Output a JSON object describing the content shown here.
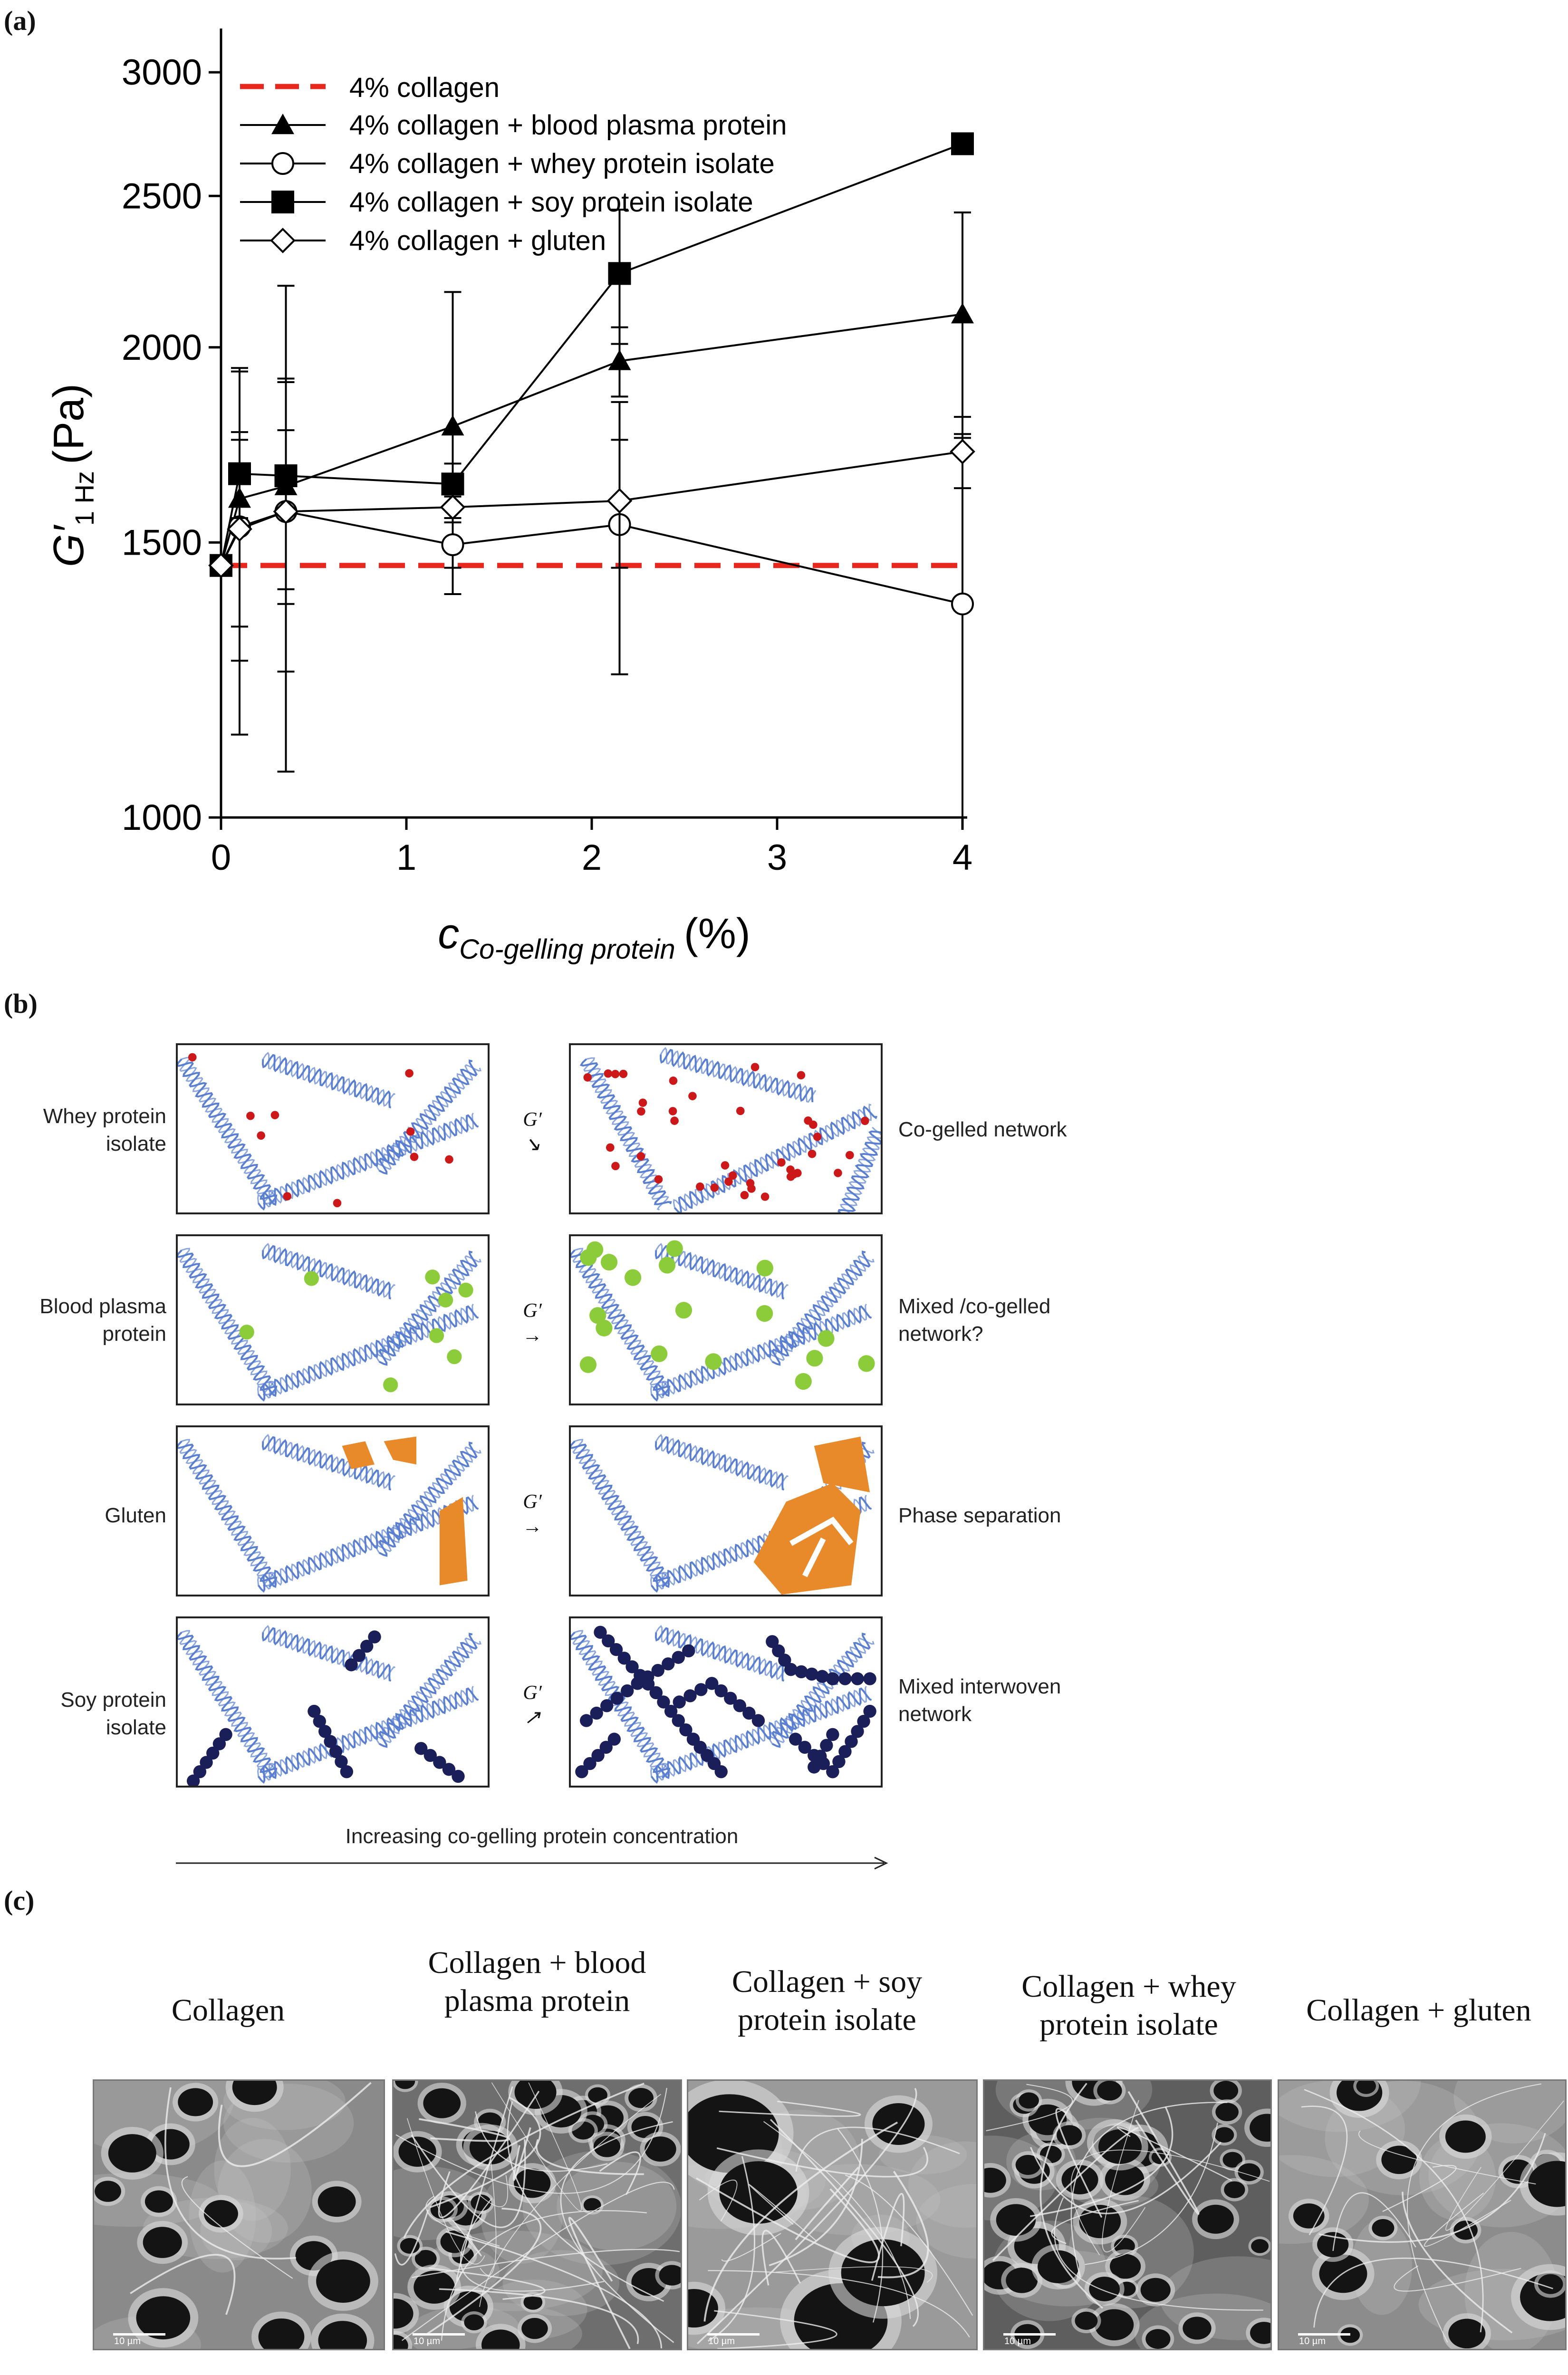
{
  "panels": {
    "a": "(a)",
    "b": "(b)",
    "c": "(c)"
  },
  "chart_data": {
    "type": "line",
    "ylabel": "G′",
    "ylabel_sub": "1 Hz",
    "ylabel_unit": "(Pa)",
    "xlabel": "c",
    "xlabel_sub": "Co-gelling protein",
    "xlabel_unit": "(%)",
    "yscale": "log",
    "ylim": [
      1000,
      3200
    ],
    "xlim": [
      -0.05,
      4.1
    ],
    "yticks": [
      1000,
      1500,
      2000,
      2500,
      3000
    ],
    "xticks": [
      0,
      1,
      2,
      3,
      4
    ],
    "reference": {
      "name": "4% collagen",
      "value": 1450,
      "color": "#e8281e"
    },
    "series": [
      {
        "name": "4% collagen + blood plasma protein",
        "marker": "triangle",
        "x": [
          0,
          0.1,
          0.35,
          1.25,
          2.15,
          4
        ],
        "y": [
          1450,
          1600,
          1630,
          1780,
          1960,
          2100
        ],
        "err": [
          0,
          340,
          560,
          390,
          100,
          340
        ]
      },
      {
        "name": "4% collagen + whey protein isolate",
        "marker": "circle",
        "x": [
          0,
          0.1,
          0.35,
          1.25,
          2.15,
          4
        ],
        "y": [
          1450,
          1535,
          1570,
          1495,
          1540,
          1370
        ],
        "err": [
          0,
          210,
          200,
          50,
          305,
          380
        ]
      },
      {
        "name": "4% collagen + soy protein isolate",
        "marker": "square",
        "x": [
          0,
          0.1,
          0.35,
          1.25,
          2.15,
          4
        ],
        "y": [
          1450,
          1660,
          1655,
          1635,
          2230,
          2700
        ],
        "err": [
          0,
          105,
          255,
          50,
          220,
          0
        ]
      },
      {
        "name": "4% collagen + gluten",
        "marker": "diamond",
        "x": [
          0,
          0.1,
          0.35,
          1.25,
          2.15,
          4
        ],
        "y": [
          1450,
          1530,
          1570,
          1580,
          1595,
          1715
        ],
        "err": [
          0,
          400,
          330,
          25,
          150,
          90
        ]
      }
    ]
  },
  "schematic": {
    "rows": [
      {
        "label": "Whey protein isolate",
        "arrow": "↘",
        "result": "Co-gelled network",
        "fill": "#cc1818",
        "kind": "dots"
      },
      {
        "label": "Blood plasma protein",
        "arrow": "→",
        "result": "Mixed /co-gelled network?",
        "fill": "#8ccc3a",
        "kind": "balls"
      },
      {
        "label": "Gluten",
        "arrow": "→",
        "result": "Phase separation",
        "fill": "#e8892a",
        "kind": "phase"
      },
      {
        "label": "Soy protein isolate",
        "arrow": "↗",
        "result": "Mixed  interwoven network",
        "fill": "#1a1f5a",
        "kind": "chains"
      }
    ],
    "g_symbol": "G′",
    "helix_color": "#5a7fd1",
    "axis_label": "Increasing co-gelling protein concentration"
  },
  "micrographs": [
    {
      "title": "Collagen",
      "scale": "10 µm"
    },
    {
      "title": "Collagen + blood plasma protein",
      "scale": "10 µm"
    },
    {
      "title": "Collagen + soy protein isolate",
      "scale": "10 µm"
    },
    {
      "title": "Collagen + whey protein isolate",
      "scale": "10 µm"
    },
    {
      "title": "Collagen + gluten",
      "scale": "10 µm"
    }
  ]
}
